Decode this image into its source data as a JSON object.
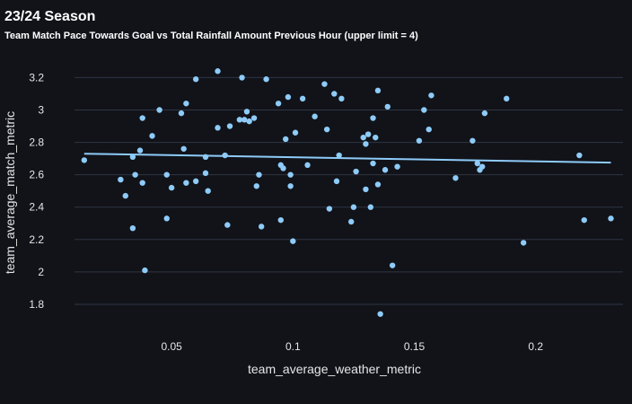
{
  "chart_data": {
    "type": "scatter",
    "title": "23/24 Season",
    "subtitle": "Team Match Pace Towards Goal vs Total Rainfall Amount Previous Hour (upper limit = 4)",
    "xlabel": "team_average_weather_metric",
    "ylabel": "team_average_match_metric",
    "xlim": [
      0.01,
      0.236
    ],
    "ylim": [
      1.7,
      3.28
    ],
    "xticks": [
      0.05,
      0.1,
      0.15,
      0.2
    ],
    "xtick_labels": [
      "0.05",
      "0.1",
      "0.15",
      "0.2"
    ],
    "yticks": [
      1.8,
      2.0,
      2.2,
      2.4,
      2.6,
      2.8,
      3.0,
      3.2
    ],
    "ytick_labels": [
      "1.8",
      "2",
      "2.2",
      "2.4",
      "2.6",
      "2.8",
      "3",
      "3.2"
    ],
    "grid": true,
    "colors": {
      "points": "#8ecbf8",
      "trendline": "#8ecbf8",
      "grid": "#2f3442",
      "background": "#111319"
    },
    "trendline": {
      "x": [
        0.014,
        0.231
      ],
      "y": [
        2.73,
        2.675
      ]
    },
    "points": [
      [
        0.014,
        2.69
      ],
      [
        0.029,
        2.57
      ],
      [
        0.031,
        2.47
      ],
      [
        0.034,
        2.71
      ],
      [
        0.035,
        2.6
      ],
      [
        0.034,
        2.27
      ],
      [
        0.037,
        2.75
      ],
      [
        0.038,
        2.95
      ],
      [
        0.038,
        2.55
      ],
      [
        0.039,
        2.01
      ],
      [
        0.042,
        2.84
      ],
      [
        0.045,
        3.0
      ],
      [
        0.048,
        2.33
      ],
      [
        0.048,
        2.6
      ],
      [
        0.05,
        2.52
      ],
      [
        0.054,
        2.98
      ],
      [
        0.055,
        2.76
      ],
      [
        0.056,
        2.55
      ],
      [
        0.056,
        3.04
      ],
      [
        0.06,
        2.56
      ],
      [
        0.06,
        3.19
      ],
      [
        0.064,
        2.71
      ],
      [
        0.064,
        2.61
      ],
      [
        0.065,
        2.5
      ],
      [
        0.069,
        3.24
      ],
      [
        0.069,
        2.89
      ],
      [
        0.072,
        2.72
      ],
      [
        0.073,
        2.29
      ],
      [
        0.074,
        2.9
      ],
      [
        0.078,
        2.94
      ],
      [
        0.079,
        3.2
      ],
      [
        0.08,
        2.94
      ],
      [
        0.081,
        2.99
      ],
      [
        0.082,
        2.93
      ],
      [
        0.084,
        2.95
      ],
      [
        0.085,
        2.53
      ],
      [
        0.086,
        2.6
      ],
      [
        0.087,
        2.28
      ],
      [
        0.089,
        3.19
      ],
      [
        0.094,
        3.04
      ],
      [
        0.095,
        2.66
      ],
      [
        0.095,
        2.32
      ],
      [
        0.096,
        2.64
      ],
      [
        0.097,
        2.82
      ],
      [
        0.098,
        3.08
      ],
      [
        0.099,
        2.53
      ],
      [
        0.099,
        2.6
      ],
      [
        0.1,
        2.19
      ],
      [
        0.101,
        2.86
      ],
      [
        0.104,
        3.07
      ],
      [
        0.106,
        2.66
      ],
      [
        0.109,
        2.96
      ],
      [
        0.113,
        3.16
      ],
      [
        0.114,
        2.88
      ],
      [
        0.115,
        2.39
      ],
      [
        0.117,
        3.1
      ],
      [
        0.118,
        2.56
      ],
      [
        0.119,
        2.72
      ],
      [
        0.12,
        3.07
      ],
      [
        0.124,
        2.31
      ],
      [
        0.125,
        2.4
      ],
      [
        0.126,
        2.62
      ],
      [
        0.129,
        2.83
      ],
      [
        0.13,
        2.79
      ],
      [
        0.13,
        2.51
      ],
      [
        0.131,
        2.85
      ],
      [
        0.132,
        2.4
      ],
      [
        0.133,
        2.95
      ],
      [
        0.133,
        2.67
      ],
      [
        0.134,
        2.83
      ],
      [
        0.135,
        3.12
      ],
      [
        0.135,
        2.54
      ],
      [
        0.136,
        1.74
      ],
      [
        0.138,
        2.63
      ],
      [
        0.139,
        3.02
      ],
      [
        0.141,
        2.04
      ],
      [
        0.143,
        2.65
      ],
      [
        0.152,
        2.81
      ],
      [
        0.154,
        3.0
      ],
      [
        0.156,
        2.88
      ],
      [
        0.157,
        3.09
      ],
      [
        0.167,
        2.58
      ],
      [
        0.174,
        2.81
      ],
      [
        0.176,
        2.67
      ],
      [
        0.177,
        2.63
      ],
      [
        0.178,
        2.65
      ],
      [
        0.179,
        2.98
      ],
      [
        0.188,
        3.07
      ],
      [
        0.195,
        2.18
      ],
      [
        0.218,
        2.72
      ],
      [
        0.22,
        2.32
      ],
      [
        0.231,
        2.33
      ]
    ]
  }
}
